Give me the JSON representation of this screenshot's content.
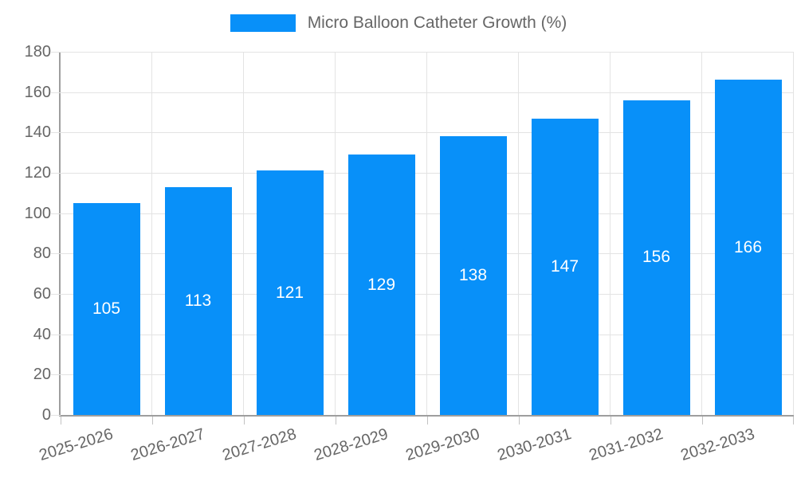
{
  "legend": {
    "label": "Micro Balloon Catheter Growth (%)"
  },
  "chart_data": {
    "type": "bar",
    "title": "Micro Balloon Catheter Growth (%)",
    "categories": [
      "2025-2026",
      "2026-2027",
      "2027-2028",
      "2028-2029",
      "2029-2030",
      "2030-2031",
      "2031-2032",
      "2032-2033"
    ],
    "series": [
      {
        "name": "Micro Balloon Catheter Growth (%)",
        "values": [
          105,
          113,
          121,
          129,
          138,
          147,
          156,
          166
        ]
      }
    ],
    "xlabel": "",
    "ylabel": "",
    "ylim": [
      0,
      180
    ],
    "yticks": [
      0,
      20,
      40,
      60,
      80,
      100,
      120,
      140,
      160,
      180
    ],
    "grid": true,
    "legend_position": "top",
    "bar_labels_inside": true,
    "xlabel_rotation_deg": -17,
    "colors": {
      "bar": "#0890f9",
      "bar_label": "#ffffff",
      "grid": "#e3e3e3",
      "axis": "#9e9e9e",
      "tick_mark": "#c2c2c2",
      "tick_text": "#666666",
      "legend_text": "#666666"
    }
  }
}
